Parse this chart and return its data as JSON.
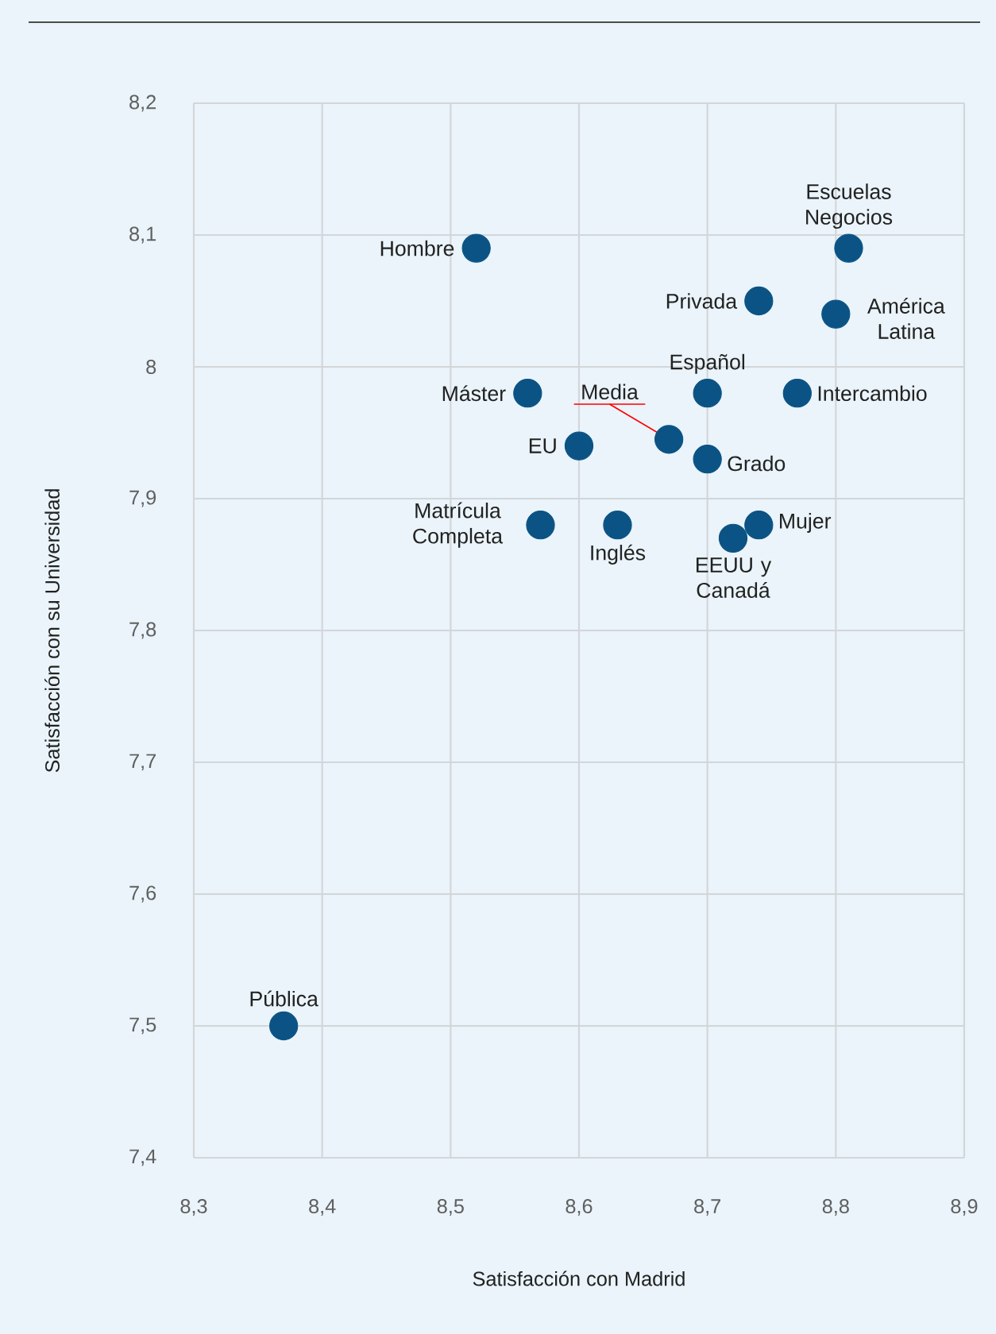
{
  "chart_data": {
    "type": "scatter",
    "xlabel": "Satisfacción con Madrid",
    "ylabel": "Satisfacción con su Universidad",
    "x": [
      8.52,
      8.81,
      8.74,
      8.8,
      8.56,
      8.7,
      8.77,
      8.67,
      8.6,
      8.7,
      8.57,
      8.63,
      8.74,
      8.72,
      8.37
    ],
    "series": [
      {
        "color": "#0b5384",
        "values": [
          8.09,
          8.09,
          8.05,
          8.04,
          7.98,
          7.98,
          7.98,
          7.945,
          7.94,
          7.93,
          7.88,
          7.88,
          7.88,
          7.87,
          7.5
        ]
      }
    ],
    "annotations": [
      {
        "text": "Hombre",
        "x": 8.52,
        "y": 8.09
      },
      {
        "text": "Escuelas Negocios",
        "x": 8.81,
        "y": 8.09
      },
      {
        "text": "Privada",
        "x": 8.74,
        "y": 8.05
      },
      {
        "text": "América Latina",
        "x": 8.8,
        "y": 8.04
      },
      {
        "text": "Máster",
        "x": 8.56,
        "y": 7.98
      },
      {
        "text": "Español",
        "x": 8.7,
        "y": 7.98
      },
      {
        "text": "Intercambio",
        "x": 8.77,
        "y": 7.98
      },
      {
        "text": "Media",
        "x": 8.67,
        "y": 7.945
      },
      {
        "text": "EU",
        "x": 8.6,
        "y": 7.94
      },
      {
        "text": "Grado",
        "x": 8.7,
        "y": 7.93
      },
      {
        "text": "Matrícula Completa",
        "x": 8.57,
        "y": 7.88
      },
      {
        "text": "Inglés",
        "x": 8.63,
        "y": 7.88
      },
      {
        "text": "Mujer",
        "x": 8.74,
        "y": 7.88
      },
      {
        "text": "EEUU y Canadá",
        "x": 8.72,
        "y": 7.87
      },
      {
        "text": "Pública",
        "x": 8.37,
        "y": 7.5
      }
    ],
    "xlim": [
      8.3,
      8.9
    ],
    "ylim": [
      7.4,
      8.2
    ],
    "xticks": [
      {
        "value": 8.3,
        "label": "8,3"
      },
      {
        "value": 8.4,
        "label": "8,4"
      },
      {
        "value": 8.5,
        "label": "8,5"
      },
      {
        "value": 8.6,
        "label": "8,6"
      },
      {
        "value": 8.7,
        "label": "8,7"
      },
      {
        "value": 8.8,
        "label": "8,8"
      },
      {
        "value": 8.9,
        "label": "8,9"
      }
    ],
    "yticks": [
      {
        "value": 7.4,
        "label": "7,4"
      },
      {
        "value": 7.5,
        "label": "7,5"
      },
      {
        "value": 7.6,
        "label": "7,6"
      },
      {
        "value": 7.7,
        "label": "7,7"
      },
      {
        "value": 7.8,
        "label": "7,8"
      },
      {
        "value": 7.9,
        "label": "7,9"
      },
      8,
      {
        "value": 8.1,
        "label": "8,1"
      },
      {
        "value": 8.2,
        "label": "8,2"
      }
    ],
    "grid": true,
    "marker": "circle"
  }
}
